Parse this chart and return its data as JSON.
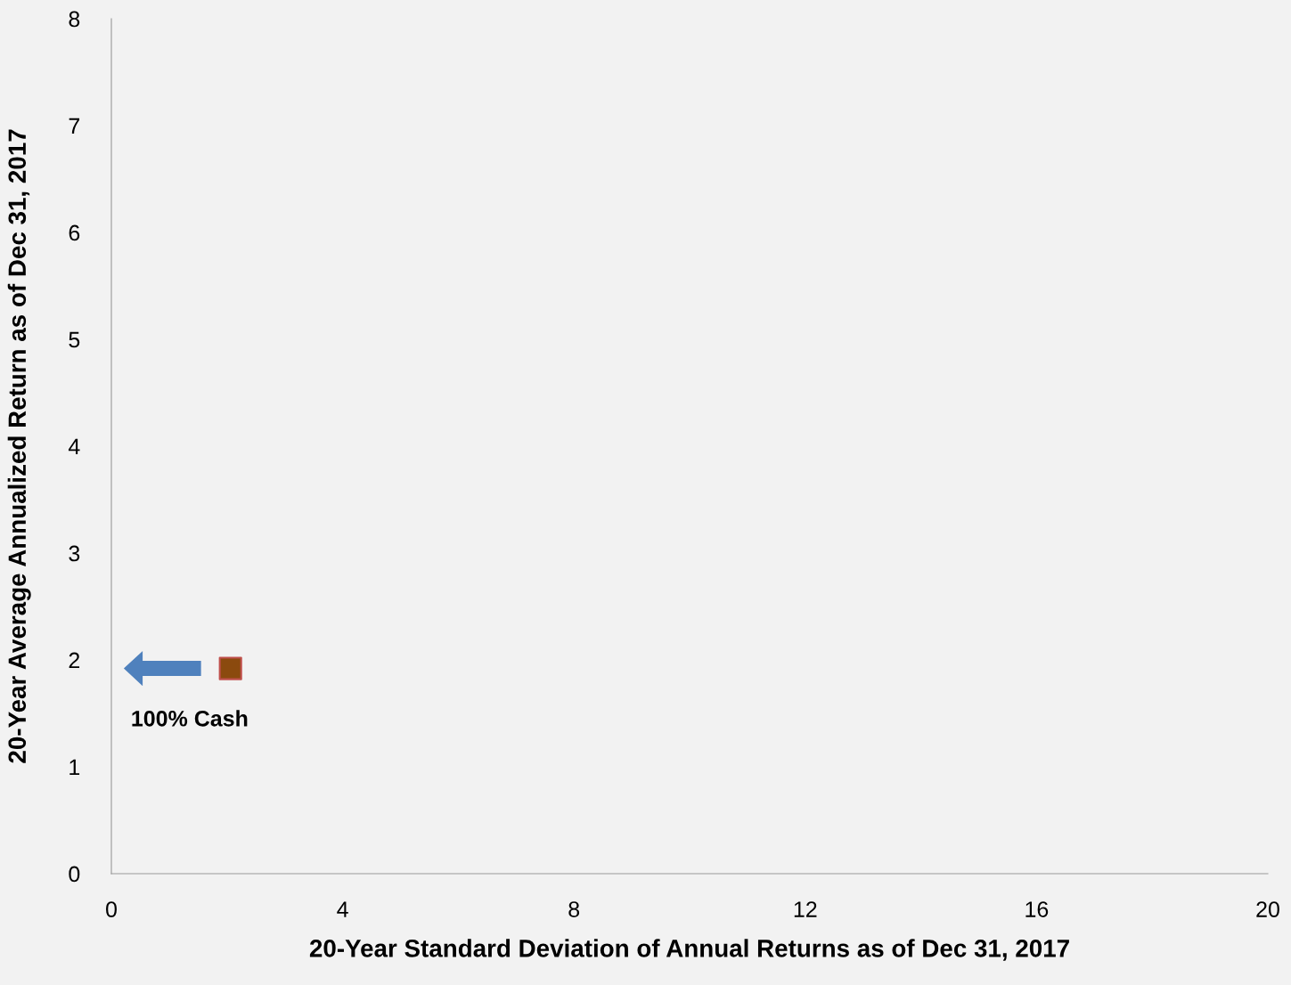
{
  "chart_data": {
    "type": "scatter",
    "xlabel": "20-Year Standard Deviation of Annual Returns as of Dec 31, 2017",
    "ylabel": "20-Year Average Annualized Return as of Dec 31, 2017",
    "x": [
      2.06
    ],
    "values": [
      1.92
    ],
    "color": "#8b4a0e",
    "marker": "square",
    "xlim": [
      0,
      20
    ],
    "xticks": [
      0,
      4,
      8,
      12,
      16,
      20
    ],
    "ylim": [
      0,
      8
    ],
    "yticks": [
      0,
      1,
      2,
      3,
      4,
      5,
      6,
      7,
      8
    ],
    "grid": false,
    "annotations": [
      {
        "text": "100% Cash",
        "x": 2.06,
        "y": 1.92
      }
    ]
  }
}
